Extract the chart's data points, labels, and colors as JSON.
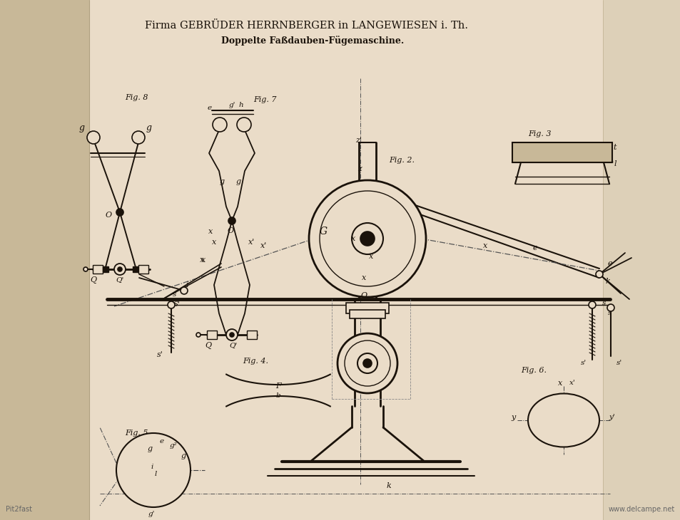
{
  "bg_main": "#eadcc8",
  "bg_left": "#d8c9b0",
  "bg_right": "#e2d4be",
  "line_color": "#1a120a",
  "title_line1": "Firma GEBRÜDER HERRNBERGER in LANGEWIESEN i. Th.",
  "title_line2": "Doppelte Faßdauben-Fügemaschine.",
  "watermark_left": "Pit2fast",
  "watermark_right": "www.delcampe.net"
}
